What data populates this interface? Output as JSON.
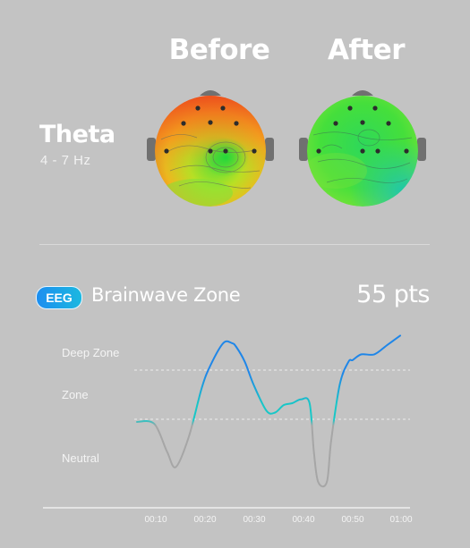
{
  "topo": {
    "before_label": "Before",
    "after_label": "After",
    "band_name": "Theta",
    "band_range": "4 - 7 Hz"
  },
  "zone": {
    "badge": "EEG",
    "title": "Brainwave Zone",
    "score": "55 pts",
    "labels": [
      "Deep Zone",
      "Zone",
      "Neutral"
    ]
  },
  "chart_data": {
    "type": "line",
    "xlabel": "",
    "ylabel": "",
    "x_ticks": [
      "00:10",
      "00:20",
      "00:30",
      "00:40",
      "00:50",
      "01:00"
    ],
    "zones": [
      "Neutral",
      "Zone",
      "Deep Zone"
    ],
    "series": [
      {
        "x_sec": [
          0,
          4,
          7,
          9,
          12,
          15,
          17,
          20,
          22,
          23,
          25,
          27,
          30,
          32,
          34,
          36,
          38,
          40,
          41,
          42,
          44,
          45,
          47,
          49,
          50,
          52,
          55,
          58,
          61
        ],
        "level": [
          1.0,
          0.95,
          0.2,
          -0.2,
          0.6,
          1.9,
          2.5,
          3.1,
          3.1,
          3.0,
          2.6,
          2.0,
          1.3,
          1.25,
          1.45,
          1.5,
          1.6,
          1.5,
          0.2,
          -0.6,
          -0.6,
          0.5,
          2.0,
          2.6,
          2.65,
          2.8,
          2.8,
          3.05,
          3.3
        ]
      }
    ],
    "colors": {
      "neutral_line": "#a6a6a6",
      "zone_line": "#18c7c7",
      "deep_line": "#1f86e8"
    }
  }
}
